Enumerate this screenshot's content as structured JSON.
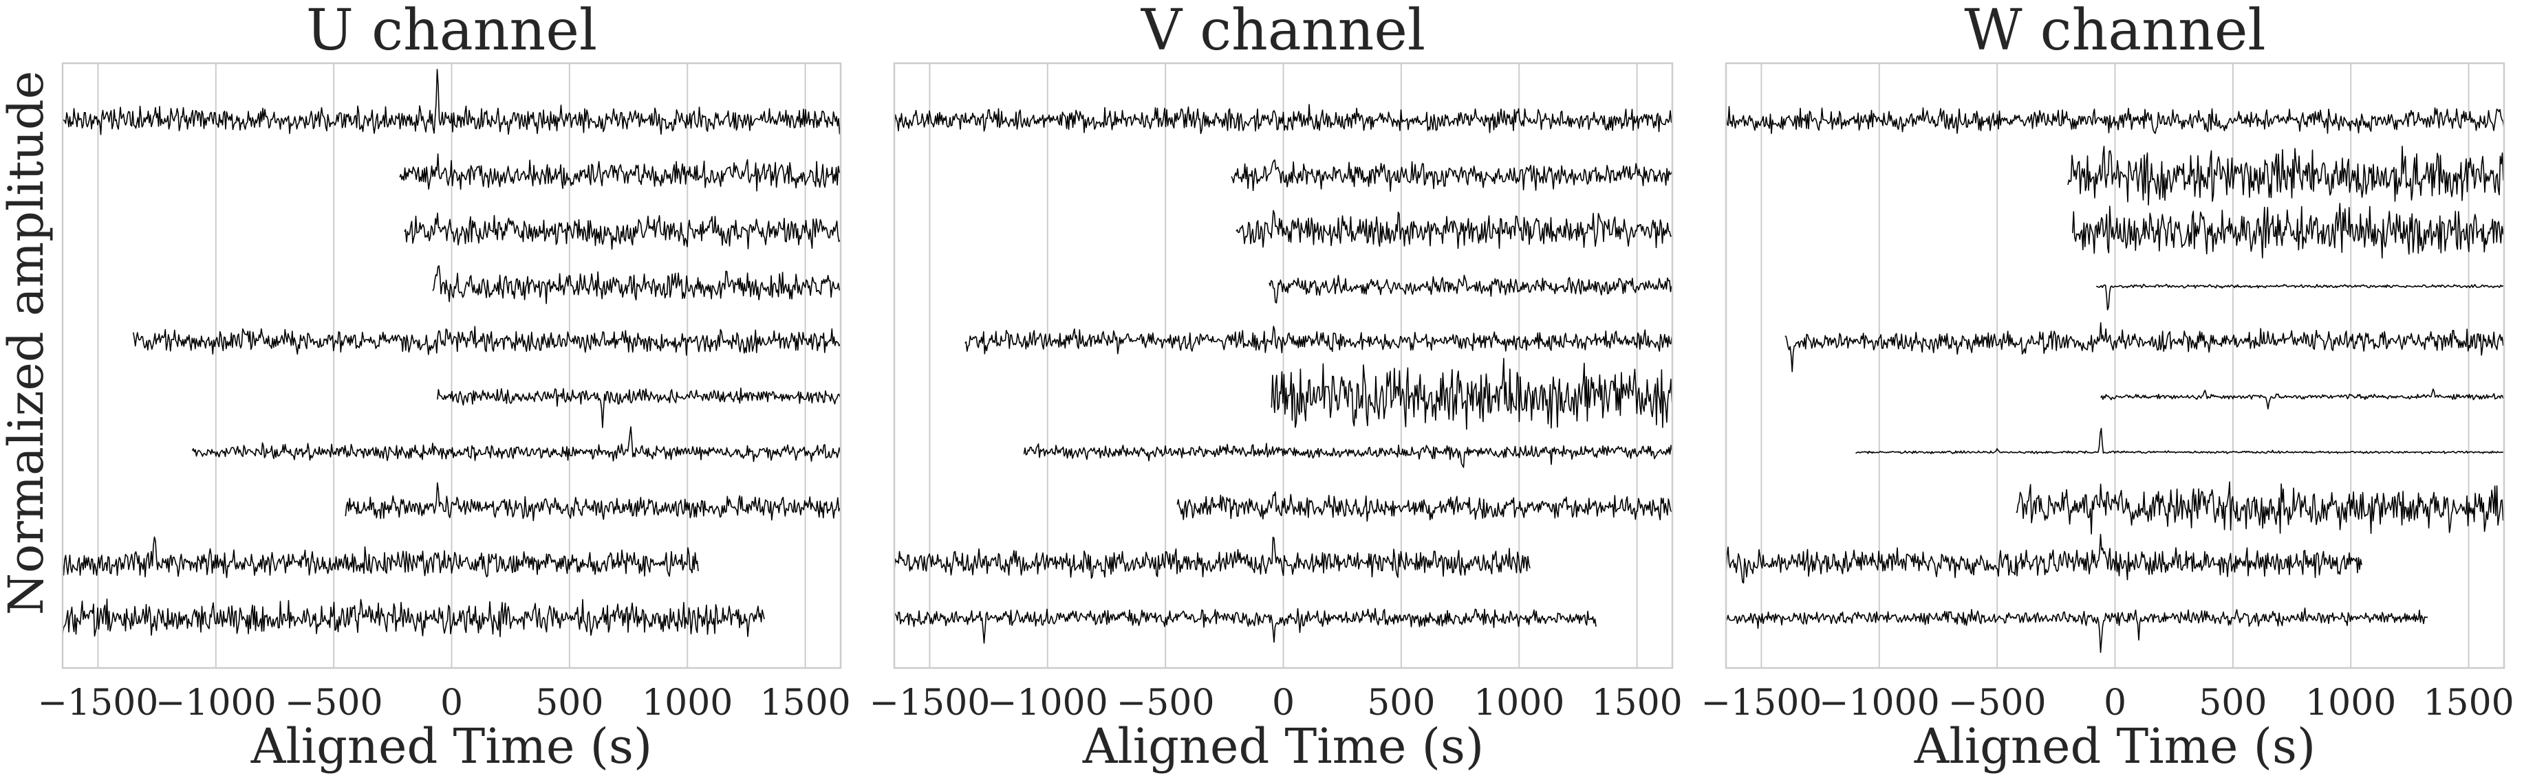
{
  "figure": {
    "ylabel": "Normalized amplitude"
  },
  "chart_data": [
    {
      "type": "line",
      "title": "U channel",
      "xlabel": "Aligned Time (s)",
      "xlim": [
        -1650,
        1650
      ],
      "xticks": [
        -1500,
        -1000,
        -500,
        0,
        500,
        1000,
        1500
      ],
      "xtick_labels": [
        "−1500",
        "−1000",
        "−500",
        "0",
        "500",
        "1000",
        "1500"
      ],
      "grid": true,
      "series": [
        {
          "x_start": -1650,
          "x_end": 1650,
          "noise": 0.3,
          "spikes": [
            {
              "x": -60,
              "amp": 2.6
            }
          ]
        },
        {
          "x_start": -220,
          "x_end": 1650,
          "noise": 0.32,
          "spikes": [
            {
              "x": -60,
              "amp": 1.4
            }
          ]
        },
        {
          "x_start": -200,
          "x_end": 1650,
          "noise": 0.34,
          "spikes": [
            {
              "x": -60,
              "amp": 1.2
            }
          ]
        },
        {
          "x_start": -80,
          "x_end": 1650,
          "noise": 0.32,
          "spikes": [
            {
              "x": -60,
              "amp": 1.0
            }
          ]
        },
        {
          "x_start": -1350,
          "x_end": 1650,
          "noise": 0.26,
          "spikes": [
            {
              "x": -55,
              "amp": 0.9
            }
          ]
        },
        {
          "x_start": -60,
          "x_end": 1650,
          "noise": 0.18,
          "spikes": [
            {
              "x": 640,
              "amp": -1.6
            }
          ]
        },
        {
          "x_start": -1100,
          "x_end": 1650,
          "noise": 0.18,
          "spikes": [
            {
              "x": 760,
              "amp": 1.6
            }
          ]
        },
        {
          "x_start": -450,
          "x_end": 1650,
          "noise": 0.26,
          "spikes": [
            {
              "x": -60,
              "amp": 1.2
            }
          ]
        },
        {
          "x_start": -1650,
          "x_end": 1050,
          "noise": 0.3,
          "spikes": [
            {
              "x": -1260,
              "amp": 1.2
            },
            {
              "x": -55,
              "amp": 1.0
            }
          ]
        },
        {
          "x_start": -1650,
          "x_end": 1330,
          "noise": 0.38,
          "spikes": [
            {
              "x": -1270,
              "amp": -1.1
            },
            {
              "x": 380,
              "amp": -0.9
            }
          ]
        }
      ]
    },
    {
      "type": "line",
      "title": "V channel",
      "xlabel": "Aligned Time (s)",
      "xlim": [
        -1650,
        1650
      ],
      "xticks": [
        -1500,
        -1000,
        -500,
        0,
        500,
        1000,
        1500
      ],
      "xtick_labels": [
        "−1500",
        "−1000",
        "−500",
        "0",
        "500",
        "1000",
        "1500"
      ],
      "grid": true,
      "series": [
        {
          "x_start": -1650,
          "x_end": 1650,
          "noise": 0.26,
          "spikes": [
            {
              "x": -40,
              "amp": 0.9
            }
          ]
        },
        {
          "x_start": -220,
          "x_end": 1650,
          "noise": 0.3,
          "spikes": [
            {
              "x": -40,
              "amp": 1.4
            }
          ]
        },
        {
          "x_start": -200,
          "x_end": 1650,
          "noise": 0.36,
          "spikes": [
            {
              "x": -40,
              "amp": 1.2
            }
          ]
        },
        {
          "x_start": -60,
          "x_end": 1650,
          "noise": 0.22,
          "spikes": [
            {
              "x": -30,
              "amp": -1.0
            }
          ]
        },
        {
          "x_start": -1350,
          "x_end": 1650,
          "noise": 0.24,
          "spikes": [
            {
              "x": -40,
              "amp": 1.0
            }
          ]
        },
        {
          "x_start": -50,
          "x_end": 1650,
          "noise": 0.7,
          "spikes": [
            {
              "x": 640,
              "amp": -1.2
            },
            {
              "x": 980,
              "amp": -1.0
            }
          ]
        },
        {
          "x_start": -1100,
          "x_end": 1650,
          "noise": 0.16,
          "spikes": [
            {
              "x": 760,
              "amp": -1.1
            }
          ]
        },
        {
          "x_start": -450,
          "x_end": 1650,
          "noise": 0.28,
          "spikes": [
            {
              "x": -40,
              "amp": 1.4
            }
          ]
        },
        {
          "x_start": -1650,
          "x_end": 1050,
          "noise": 0.3,
          "spikes": [
            {
              "x": -40,
              "amp": 1.4
            }
          ]
        },
        {
          "x_start": -1650,
          "x_end": 1330,
          "noise": 0.2,
          "spikes": [
            {
              "x": -1270,
              "amp": -1.3
            },
            {
              "x": -40,
              "amp": -1.1
            }
          ]
        }
      ]
    },
    {
      "type": "line",
      "title": "W channel",
      "xlabel": "Aligned Time (s)",
      "xlim": [
        -1650,
        1650
      ],
      "xticks": [
        -1500,
        -1000,
        -500,
        0,
        500,
        1000,
        1500
      ],
      "xtick_labels": [
        "−1500",
        "−1000",
        "−500",
        "0",
        "500",
        "1000",
        "1500"
      ],
      "grid": true,
      "series": [
        {
          "x_start": -1650,
          "x_end": 1650,
          "noise": 0.26,
          "spikes": [
            {
              "x": 1620,
              "amp": 0.8
            }
          ]
        },
        {
          "x_start": -200,
          "x_end": 1650,
          "noise": 0.6,
          "spikes": [
            {
              "x": -20,
              "amp": 1.6
            },
            {
              "x": 300,
              "amp": -1.0
            }
          ]
        },
        {
          "x_start": -180,
          "x_end": 1650,
          "noise": 0.55,
          "spikes": [
            {
              "x": -160,
              "amp": -1.0
            },
            {
              "x": -20,
              "amp": 1.2
            }
          ]
        },
        {
          "x_start": -80,
          "x_end": 1650,
          "noise": 0.04,
          "spikes": [
            {
              "x": -30,
              "amp": -1.6
            }
          ]
        },
        {
          "x_start": -1400,
          "x_end": 1650,
          "noise": 0.26,
          "spikes": [
            {
              "x": -1370,
              "amp": -1.2
            },
            {
              "x": -60,
              "amp": 1.0
            }
          ]
        },
        {
          "x_start": -60,
          "x_end": 1650,
          "noise": 0.06,
          "spikes": [
            {
              "x": 380,
              "amp": 0.4
            },
            {
              "x": 650,
              "amp": -0.7
            },
            {
              "x": 1350,
              "amp": 0.4
            }
          ]
        },
        {
          "x_start": -1100,
          "x_end": 1650,
          "noise": 0.03,
          "spikes": [
            {
              "x": -500,
              "amp": 0.2
            },
            {
              "x": -60,
              "amp": 1.5
            }
          ]
        },
        {
          "x_start": -420,
          "x_end": 1650,
          "noise": 0.5,
          "spikes": [
            {
              "x": -60,
              "amp": 1.6
            }
          ]
        },
        {
          "x_start": -1650,
          "x_end": 1050,
          "noise": 0.32,
          "spikes": [
            {
              "x": -1580,
              "amp": -1.2
            },
            {
              "x": -430,
              "amp": -1.0
            },
            {
              "x": -60,
              "amp": 1.6
            }
          ]
        },
        {
          "x_start": -1650,
          "x_end": 1330,
          "noise": 0.16,
          "spikes": [
            {
              "x": -60,
              "amp": -1.8
            },
            {
              "x": 100,
              "amp": -1.1
            }
          ]
        }
      ]
    }
  ]
}
